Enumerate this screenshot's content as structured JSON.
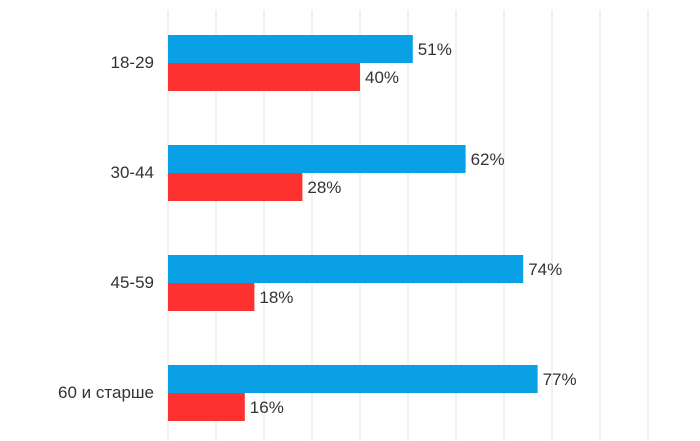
{
  "chart_data": {
    "type": "bar",
    "orientation": "horizontal",
    "categories": [
      "18-29",
      "30-44",
      "45-59",
      "60 и старше"
    ],
    "series": [
      {
        "color": "#0aa0e6",
        "values": [
          51,
          62,
          74,
          77
        ]
      },
      {
        "color": "#fe3131",
        "values": [
          40,
          28,
          18,
          16
        ]
      }
    ],
    "value_suffix": "%",
    "xlim": [
      0,
      100
    ],
    "grid": true
  }
}
